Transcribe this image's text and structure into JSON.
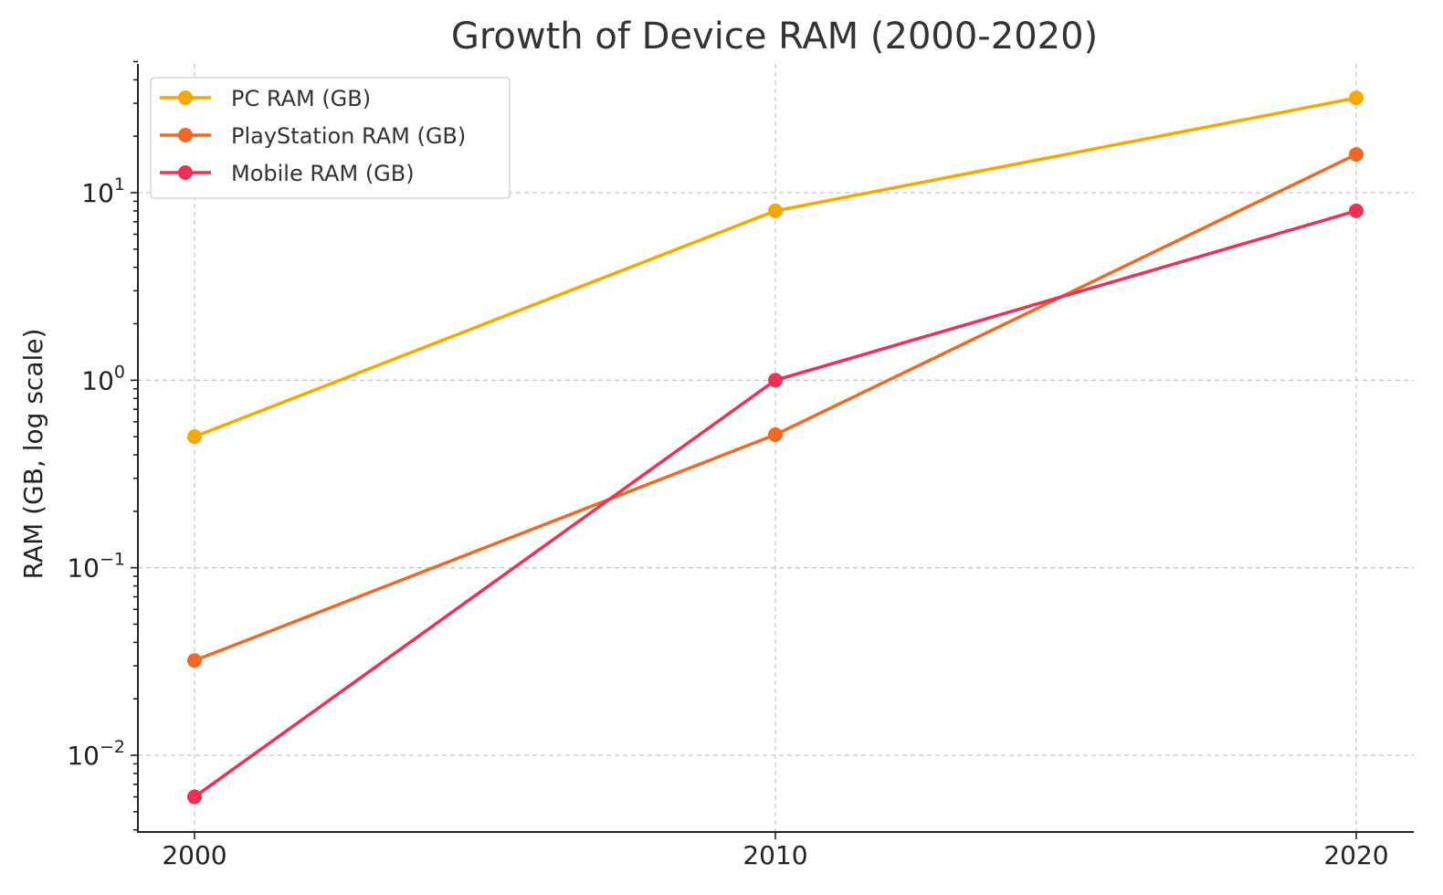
{
  "chart_data": {
    "type": "line",
    "title": "Growth of Device RAM (2000-2020)",
    "xlabel": "",
    "ylabel": "RAM (GB, log scale)",
    "x": [
      2000,
      2010,
      2020
    ],
    "x_tick_labels": [
      "2000",
      "2010",
      "2020"
    ],
    "y_scale": "log",
    "ylim": [
      0.004,
      50
    ],
    "y_ticks": [
      {
        "value": 10,
        "base": "10",
        "exp": "1"
      },
      {
        "value": 1,
        "base": "10",
        "exp": "0"
      },
      {
        "value": 0.1,
        "base": "10",
        "exp": "−1"
      },
      {
        "value": 0.01,
        "base": "10",
        "exp": "−2"
      }
    ],
    "grid": true,
    "legend_position": "top-left",
    "series": [
      {
        "name": "PC RAM (GB)",
        "color": "#F5A800",
        "values": [
          0.5,
          8,
          32
        ]
      },
      {
        "name": "PlayStation RAM (GB)",
        "color": "#EE6A24",
        "values": [
          0.032,
          0.512,
          16
        ]
      },
      {
        "name": "Mobile RAM (GB)",
        "color": "#EE3056",
        "values": [
          0.006,
          1,
          8
        ]
      }
    ]
  }
}
